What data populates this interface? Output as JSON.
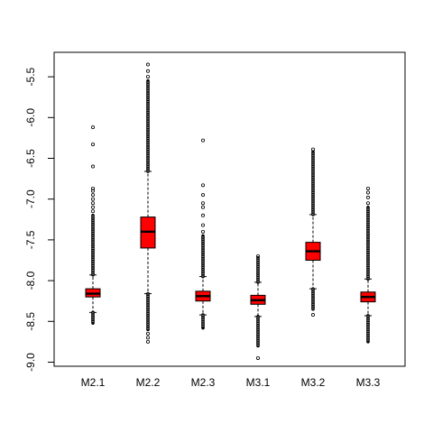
{
  "chart_data": {
    "type": "boxplot",
    "title": "",
    "xlabel": "",
    "ylabel": "",
    "ylim": [
      -9.05,
      -5.2
    ],
    "y_ticks": [
      -5.5,
      -6.0,
      -6.5,
      -7.0,
      -7.5,
      -8.0,
      -8.5,
      -9.0
    ],
    "y_tick_labels": [
      "-5.5",
      "-6.0",
      "-6.5",
      "-7.0",
      "-7.5",
      "-8.0",
      "-8.5",
      "-9.0"
    ],
    "grid": false,
    "legend": "none",
    "box_color": "#ff0000",
    "outlier_symbol": "open-circle",
    "categories": [
      "M2.1",
      "M2.2",
      "M2.3",
      "M3.1",
      "M3.2",
      "M3.3"
    ],
    "boxes": [
      {
        "name": "M2.1",
        "whisker_low": -8.39,
        "q1": -8.2,
        "median": -8.16,
        "q3": -8.1,
        "whisker_high": -7.93,
        "outliers_high_dense": [
          -7.93,
          -7.2
        ],
        "outliers_high": [
          -7.15,
          -7.1,
          -7.05,
          -7.0,
          -6.95,
          -6.9,
          -6.87,
          -6.6,
          -6.33,
          -6.12
        ],
        "outliers_low_dense": [
          -8.39,
          -8.52
        ]
      },
      {
        "name": "M2.2",
        "whisker_low": -8.16,
        "q1": -7.6,
        "median": -7.4,
        "q3": -7.22,
        "whisker_high": -6.66,
        "outliers_high_dense": [
          -6.66,
          -5.55
        ],
        "outliers_high": [
          -5.5,
          -5.43,
          -5.35
        ],
        "outliers_low_dense": [
          -8.16,
          -8.6
        ],
        "outliers_low": [
          -8.65,
          -8.7,
          -8.75
        ]
      },
      {
        "name": "M2.3",
        "whisker_low": -8.42,
        "q1": -8.25,
        "median": -8.19,
        "q3": -8.13,
        "whisker_high": -7.95,
        "outliers_high_dense": [
          -7.95,
          -7.45
        ],
        "outliers_high": [
          -7.4,
          -7.32,
          -7.2,
          -7.1,
          -7.05,
          -6.95,
          -6.83,
          -6.28
        ],
        "outliers_low_dense": [
          -8.42,
          -8.58
        ]
      },
      {
        "name": "M3.1",
        "whisker_low": -8.44,
        "q1": -8.29,
        "median": -8.24,
        "q3": -8.18,
        "whisker_high": -8.02,
        "outliers_high_dense": [
          -8.02,
          -7.72
        ],
        "outliers_high": [
          -7.7
        ],
        "outliers_low_dense": [
          -8.44,
          -8.8
        ],
        "outliers_low": [
          -8.95
        ]
      },
      {
        "name": "M3.2",
        "whisker_low": -8.1,
        "q1": -7.75,
        "median": -7.64,
        "q3": -7.53,
        "whisker_high": -7.19,
        "outliers_high_dense": [
          -7.19,
          -6.42
        ],
        "outliers_high": [
          -6.39
        ],
        "outliers_low_dense": [
          -8.1,
          -8.35
        ],
        "outliers_low": [
          -8.42
        ]
      },
      {
        "name": "M3.3",
        "whisker_low": -8.43,
        "q1": -8.26,
        "median": -8.2,
        "q3": -8.14,
        "whisker_high": -7.98,
        "outliers_high_dense": [
          -7.98,
          -7.1
        ],
        "outliers_high": [
          -7.05,
          -6.98,
          -6.92,
          -6.87
        ],
        "outliers_low_dense": [
          -8.43,
          -8.75
        ]
      }
    ]
  }
}
